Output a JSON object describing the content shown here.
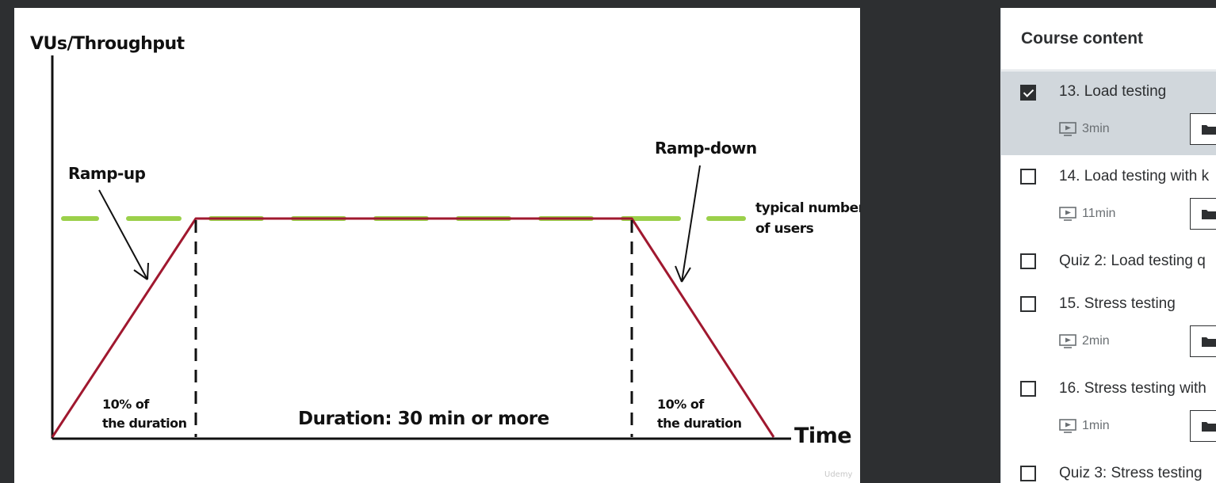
{
  "slide": {
    "y_axis_label": "VUs/Throughput",
    "x_axis_label": "Time",
    "ramp_up_label": "Ramp-up",
    "ramp_down_label": "Ramp-down",
    "plateau_label_line1": "typical number",
    "plateau_label_line2": "of users",
    "ramp_up_duration_line1": "10% of",
    "ramp_up_duration_line2": "the duration",
    "ramp_down_duration_line1": "10% of",
    "ramp_down_duration_line2": "the duration",
    "main_duration_label": "Duration: 30 min or more",
    "watermark": "Udemy",
    "colors": {
      "load_line": "#a0182f",
      "typical_users_dash": "#9bd04a",
      "ink": "#111111"
    }
  },
  "sidebar": {
    "title": "Course content",
    "items": [
      {
        "title": "13. Load testing",
        "duration": "3min",
        "checked": true,
        "active": true,
        "has_video": true,
        "icon": "video-icon"
      },
      {
        "title": "14. Load testing with k",
        "duration": "11min",
        "checked": false,
        "active": false,
        "has_video": true,
        "icon": "video-icon"
      },
      {
        "title": "Quiz 2: Load testing q",
        "checked": false,
        "active": false,
        "has_video": false
      },
      {
        "title": "15. Stress testing",
        "duration": "2min",
        "checked": false,
        "active": false,
        "has_video": true,
        "icon": "video-icon"
      },
      {
        "title": "16. Stress testing with",
        "duration": "1min",
        "checked": false,
        "active": false,
        "has_video": true,
        "icon": "video-icon"
      },
      {
        "title": "Quiz 3: Stress testing",
        "checked": false,
        "active": false,
        "has_video": false
      }
    ],
    "resources_icon": "folder-icon",
    "colors": {
      "active_background": "#d1d7dc",
      "text": "#2d2f31",
      "muted_text": "#6a6f73"
    }
  }
}
